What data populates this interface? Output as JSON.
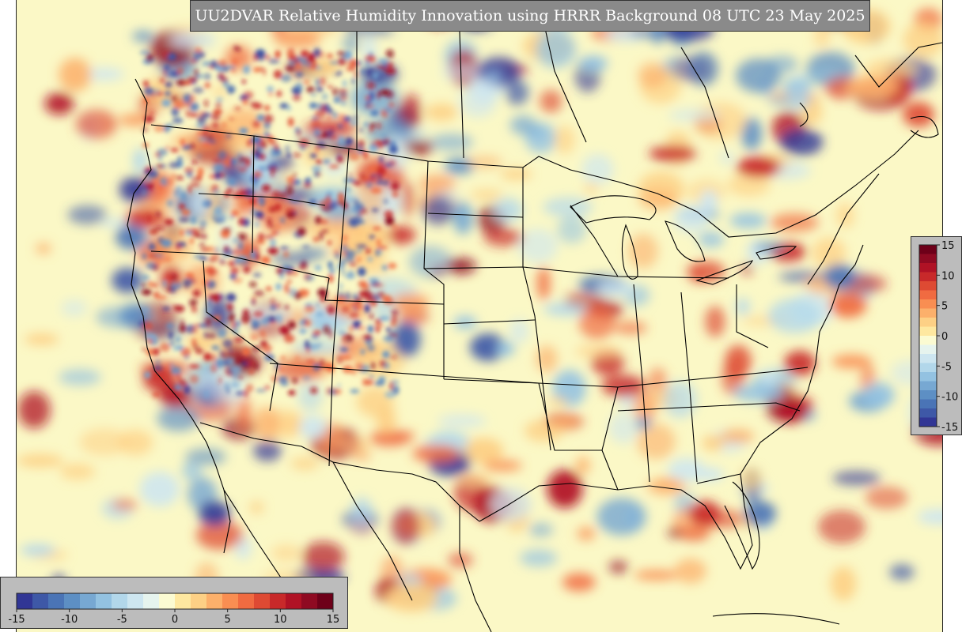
{
  "title": "UU2DVAR Relative Humidity Innovation using HRRR Background 08 UTC 23 May 2025",
  "colorbar": {
    "min": -15,
    "max": 15,
    "ticks_horizontal": [
      "-15",
      "-10",
      "-5",
      "0",
      "5",
      "10",
      "15"
    ],
    "ticks_vertical": [
      "15",
      "10",
      "5",
      "0",
      "-5",
      "-10",
      "-15"
    ],
    "colors": [
      "#313695",
      "#3e58a7",
      "#4a74b6",
      "#5d8fc4",
      "#77a8d2",
      "#93c2e1",
      "#b2d7ea",
      "#cde6f0",
      "#e6f4ee",
      "#fbfbd2",
      "#fee8a0",
      "#fdd085",
      "#fcb06b",
      "#f98e52",
      "#f06b41",
      "#de4a33",
      "#c8292a",
      "#b01225",
      "#8f0a22",
      "#6e0019"
    ]
  },
  "map": {
    "background_color": "#fbf8c6",
    "border_color": "#000000"
  }
}
